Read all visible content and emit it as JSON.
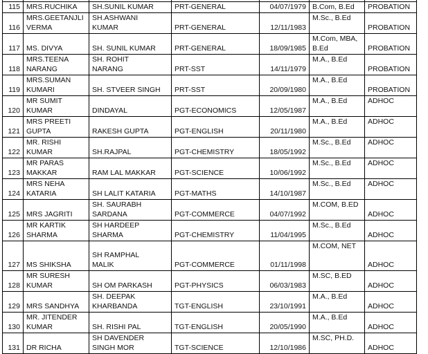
{
  "table": {
    "rows": [
      {
        "sno": "",
        "name": "",
        "father": "",
        "post": "",
        "dob": "",
        "qual": "",
        "status": "",
        "lines": 1
      },
      {
        "sno": "115",
        "name": "MRS.RUCHIKA",
        "father": "SH.SUNIL KUMAR",
        "post": "PRT-GENERAL",
        "dob": "04/07/1979",
        "qual": "B.Com, B.Ed",
        "status": "PROBATION",
        "lines": 1
      },
      {
        "sno": "116",
        "name": "MRS.GEETANJLI\nVERMA",
        "father": "SH.ASHWANI\nKUMAR",
        "post": "PRT-GENERAL",
        "dob": "12/11/1983",
        "qual": "M.Sc., B.Ed",
        "status": "PROBATION",
        "lines": 2
      },
      {
        "sno": "117",
        "name": "MS. DIVYA",
        "father": "SH. SUNIL KUMAR",
        "post": "PRT-GENERAL",
        "dob": "18/09/1985",
        "qual": "M.Com, MBA,\nB.Ed",
        "status": "PROBATION",
        "lines": 2
      },
      {
        "sno": "118",
        "name": "MRS.TEENA\nNARANG",
        "father": "SH. ROHIT\nNARANG",
        "post": "PRT-SST",
        "dob": "14/11/1979",
        "qual": "M.A., B.Ed",
        "status": "PROBATION",
        "lines": 2
      },
      {
        "sno": "119",
        "name": "MRS.SUMAN\nKUMARI",
        "father": "SH. STVEER SINGH",
        "post": "PRT-SST",
        "dob": "20/09/1980",
        "qual": "M.A., B.Ed",
        "status": "PROBATION",
        "lines": 2
      },
      {
        "sno": "120",
        "name": "MR SUMIT KUMAR",
        "father": "DINDAYAL",
        "post": "PGT-ECONOMICS",
        "dob": "12/05/1987",
        "qual": "M.A., B.Ed",
        "status": "ADHOC",
        "lines": 1,
        "status_top": true
      },
      {
        "sno": "121",
        "name": "MRS PREETI GUPTA",
        "father": "RAKESH GUPTA",
        "post": "PGT-ENGLISH",
        "dob": "20/11/1980",
        "qual": "M.A., B.Ed",
        "status": "ADHOC",
        "lines": 1,
        "status_top": true
      },
      {
        "sno": "122",
        "name": "MR. RISHI KUMAR",
        "father": "SH.RAJPAL",
        "post": "PGT-CHEMISTRY",
        "dob": "18/05/1992",
        "qual": "M.Sc., B.Ed",
        "status": "ADHOC",
        "lines": 1,
        "status_top": true
      },
      {
        "sno": "123",
        "name": "MR PARAS MAKKAR",
        "father": "RAM LAL MAKKAR",
        "post": "PGT-SCIENCE",
        "dob": "10/06/1992",
        "qual": "M.Sc., B.Ed",
        "status": "ADHOC",
        "lines": 1,
        "status_top": true
      },
      {
        "sno": "124",
        "name": "MRS NEHA KATARIA",
        "father": "SH LALIT KATARIA",
        "post": "PGT-MATHS",
        "dob": "14/10/1987",
        "qual": "M.Sc., B.Ed",
        "status": "ADHOC",
        "lines": 2,
        "status_top": true
      },
      {
        "sno": "125",
        "name": "MRS JAGRITI",
        "father": "SH. SAURABH\nSARDANA",
        "post": "PGT-COMMERCE",
        "dob": "04/07/1992",
        "qual": "M.COM, B.ED",
        "status": "ADHOC",
        "lines": 2
      },
      {
        "sno": "126",
        "name": "MR KARTIK SHARMA",
        "father": "SH HARDEEP\nSHARMA",
        "post": "PGT-CHEMISTRY",
        "dob": "11/04/1995",
        "qual": "M.Sc., B.Ed",
        "status": "ADHOC",
        "lines": 2
      },
      {
        "sno": "127",
        "name": "MS SHIKSHA",
        "father": "SH RAMPHAL\nMALIK",
        "post": "PGT-COMMERCE",
        "dob": "01/11/1998",
        "qual": "M.COM, NET",
        "status": "ADHOC",
        "lines": 3
      },
      {
        "sno": "128",
        "name": "MR SURESH KUMAR",
        "father": "SH OM PARKASH",
        "post": "PGT-PHYSICS",
        "dob": "06/03/1983",
        "qual": "M.SC, B.ED",
        "status": "ADHOC",
        "lines": 1
      },
      {
        "sno": "129",
        "name": "MRS SANDHYA",
        "father": "SH. DEEPAK\nKHARBANDA",
        "post": "TGT-ENGLISH",
        "dob": "23/10/1991",
        "qual": "M.A., B.Ed",
        "status": "ADHOC",
        "lines": 2
      },
      {
        "sno": "130",
        "name": "MR. JITENDER\nKUMAR",
        "father": "SH. RISHI PAL",
        "post": "TGT-ENGLISH",
        "dob": "20/05/1990",
        "qual": "M.A., B.Ed",
        "status": "ADHOC",
        "lines": 2
      },
      {
        "sno": "131",
        "name": "DR RICHA",
        "father": "SH DAVENDER\nSINGH MOR",
        "post": "TGT-SCIENCE",
        "dob": "12/10/1986",
        "qual": "M.SC, PH.D.",
        "status": "ADHOC",
        "lines": 2
      }
    ]
  }
}
